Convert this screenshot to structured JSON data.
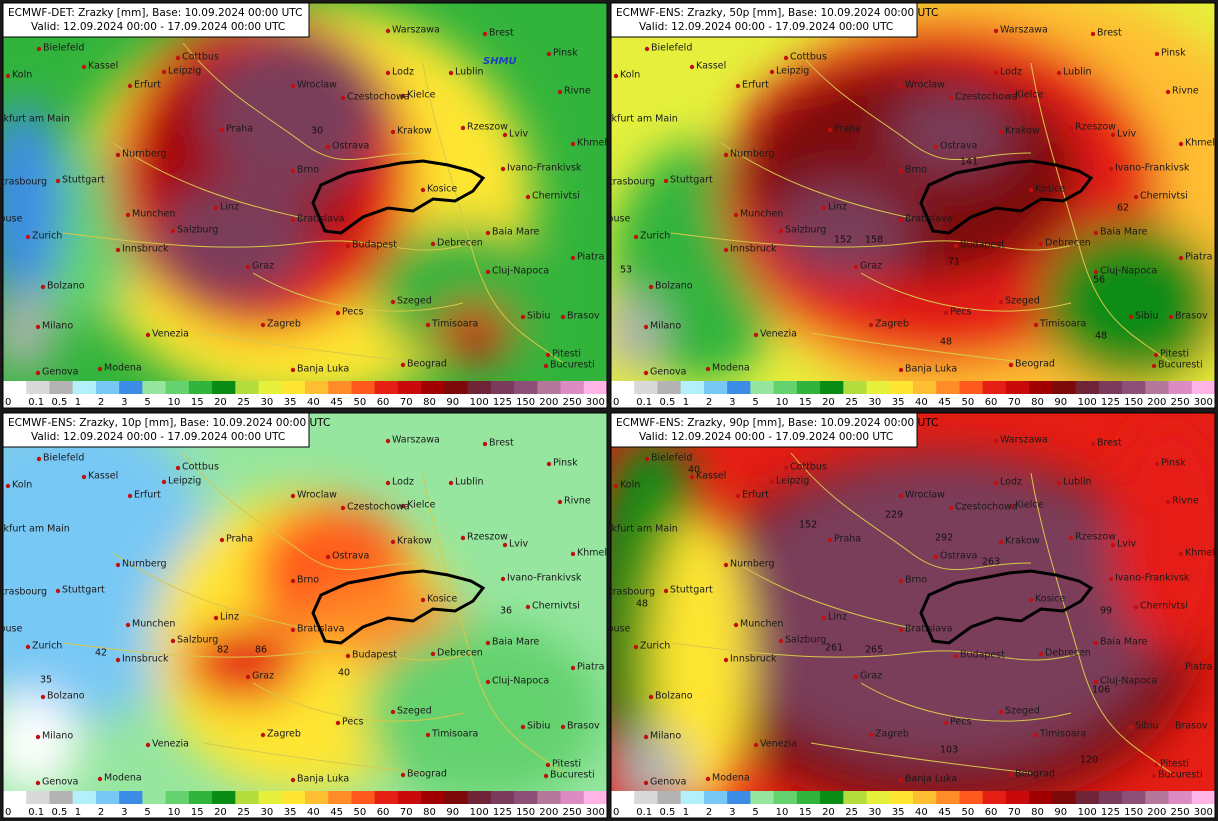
{
  "logo": "SHMU",
  "panels": [
    {
      "title": "ECMWF-DET: Zrazky [mm], Base: 10.09.2024 00:00 UTC",
      "valid": "Valid: 12.09.2024 00:00 - 17.09.2024 00:00 UTC",
      "annotations": [
        "30"
      ]
    },
    {
      "title": "ECMWF-ENS: Zrazky, 50p [mm], Base: 10.09.2024 00:00 UTC",
      "valid": "Valid: 12.09.2024 00:00 - 17.09.2024 00:00 UTC",
      "annotations": [
        "141",
        "152",
        "158",
        "71",
        "53",
        "48",
        "48",
        "56",
        "62"
      ]
    },
    {
      "title": "ECMWF-ENS: Zrazky, 10p [mm], Base: 10.09.2024 00:00 UTC",
      "valid": "Valid: 12.09.2024 00:00 - 17.09.2024 00:00 UTC",
      "annotations": [
        "82",
        "86",
        "40",
        "36",
        "42",
        "35"
      ]
    },
    {
      "title": "ECMWF-ENS: Zrazky, 90p [mm], Base: 10.09.2024 00:00 UTC",
      "valid": "Valid: 12.09.2024 00:00 - 17.09.2024 00:00 UTC",
      "annotations": [
        "229",
        "292",
        "263",
        "261",
        "265",
        "106",
        "103",
        "120",
        "48",
        "40",
        "99",
        "152"
      ]
    }
  ],
  "cities": [
    "Bielefeld",
    "Warszawa",
    "Brest",
    "Pinsk",
    "Cottbus",
    "Kassel",
    "Leipzig",
    "Lodz",
    "Lublin",
    "Koln",
    "Erfurt",
    "Wroclaw",
    "Rivne",
    "Kielce",
    "Czestochowa",
    "Frankfurt am Main",
    "Praha",
    "Krakow",
    "Rzeszow",
    "Lviv",
    "Khmelnytskyi",
    "Ostrava",
    "Nurnberg",
    "Brno",
    "Ivano-Frankivsk",
    "Stuttgart",
    "Strasbourg",
    "Kosice",
    "Chernivtsi",
    "Munchen",
    "Bratislava",
    "Zurich",
    "Salzburg",
    "Linz",
    "Innsbruck",
    "Budapest",
    "Debrecen",
    "Baia Mare",
    "Piatra Neamt",
    "Graz",
    "Bolzano",
    "Cluj-Napoca",
    "Szeged",
    "Pecs",
    "Sibiu",
    "Brasov",
    "Milano",
    "Venezia",
    "Zagreb",
    "Timisoara",
    "Pitesti",
    "Modena",
    "Beograd",
    "Banja Luka",
    "Genova",
    "Bucuresti",
    "Toulouse"
  ],
  "legend": {
    "labels": [
      0,
      0.1,
      0.5,
      1,
      2,
      3,
      5,
      10,
      15,
      20,
      25,
      30,
      35,
      40,
      45,
      50,
      60,
      70,
      80,
      90,
      100,
      125,
      150,
      200,
      250,
      300
    ],
    "colors": [
      "#ffffff",
      "#d9d9d9",
      "#b3b3b3",
      "#b4f0fa",
      "#78c8f5",
      "#3c8ce6",
      "#96e6a0",
      "#64d26e",
      "#32b43c",
      "#0a8c14",
      "#b4dc3c",
      "#e6f03c",
      "#ffe632",
      "#ffbe32",
      "#ff8c28",
      "#ff5a1e",
      "#e61e14",
      "#c80a0a",
      "#a00000",
      "#7d0a0a",
      "#6e2337",
      "#7a3c5a",
      "#8c5078",
      "#b4789b",
      "#dc8cc3",
      "#ffb4e6"
    ]
  }
}
